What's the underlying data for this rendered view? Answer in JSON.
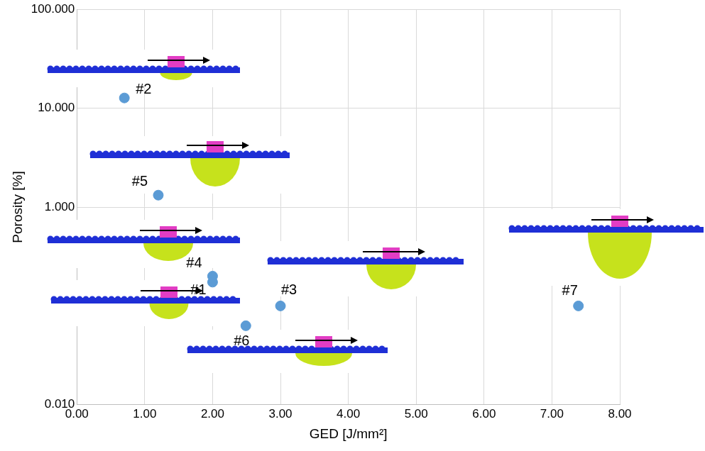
{
  "chart_data": {
    "type": "scatter",
    "x_label": "GED [J/mm²]",
    "y_label": "Porosity [%]",
    "log": "y",
    "grid": true,
    "series": [
      {
        "name": "Porosity",
        "color": "#5b9bd5",
        "marker": "circle",
        "x": [
          0.7,
          1.2,
          2.0,
          2.0,
          3.0,
          2.49,
          7.39
        ],
        "values": [
          12.7,
          1.32,
          0.2,
          0.174,
          0.1,
          0.063,
          0.1
        ],
        "point_labels": [
          "#2",
          "#5",
          "#4",
          "#1",
          "#3",
          "#6",
          "#7"
        ]
      }
    ],
    "xlim": [
      0,
      8
    ],
    "xticks": [
      {
        "value": 0,
        "label": "0.00"
      },
      {
        "value": 1,
        "label": "1.00"
      },
      {
        "value": 2,
        "label": "2.00"
      },
      {
        "value": 3,
        "label": "3.00"
      },
      {
        "value": 4,
        "label": "4.00"
      },
      {
        "value": 5,
        "label": "5.00"
      },
      {
        "value": 6,
        "label": "6.00"
      },
      {
        "value": 7,
        "label": "7.00"
      },
      {
        "value": 8,
        "label": "8.00"
      }
    ],
    "ylim": [
      0.01,
      100
    ],
    "yticks": [
      {
        "value": 0.01,
        "label": "0.010"
      },
      {
        "value": 1,
        "label": "1.000"
      },
      {
        "value": 10,
        "label": "10.000"
      },
      {
        "value": 100,
        "label": "100.000"
      }
    ]
  }
}
